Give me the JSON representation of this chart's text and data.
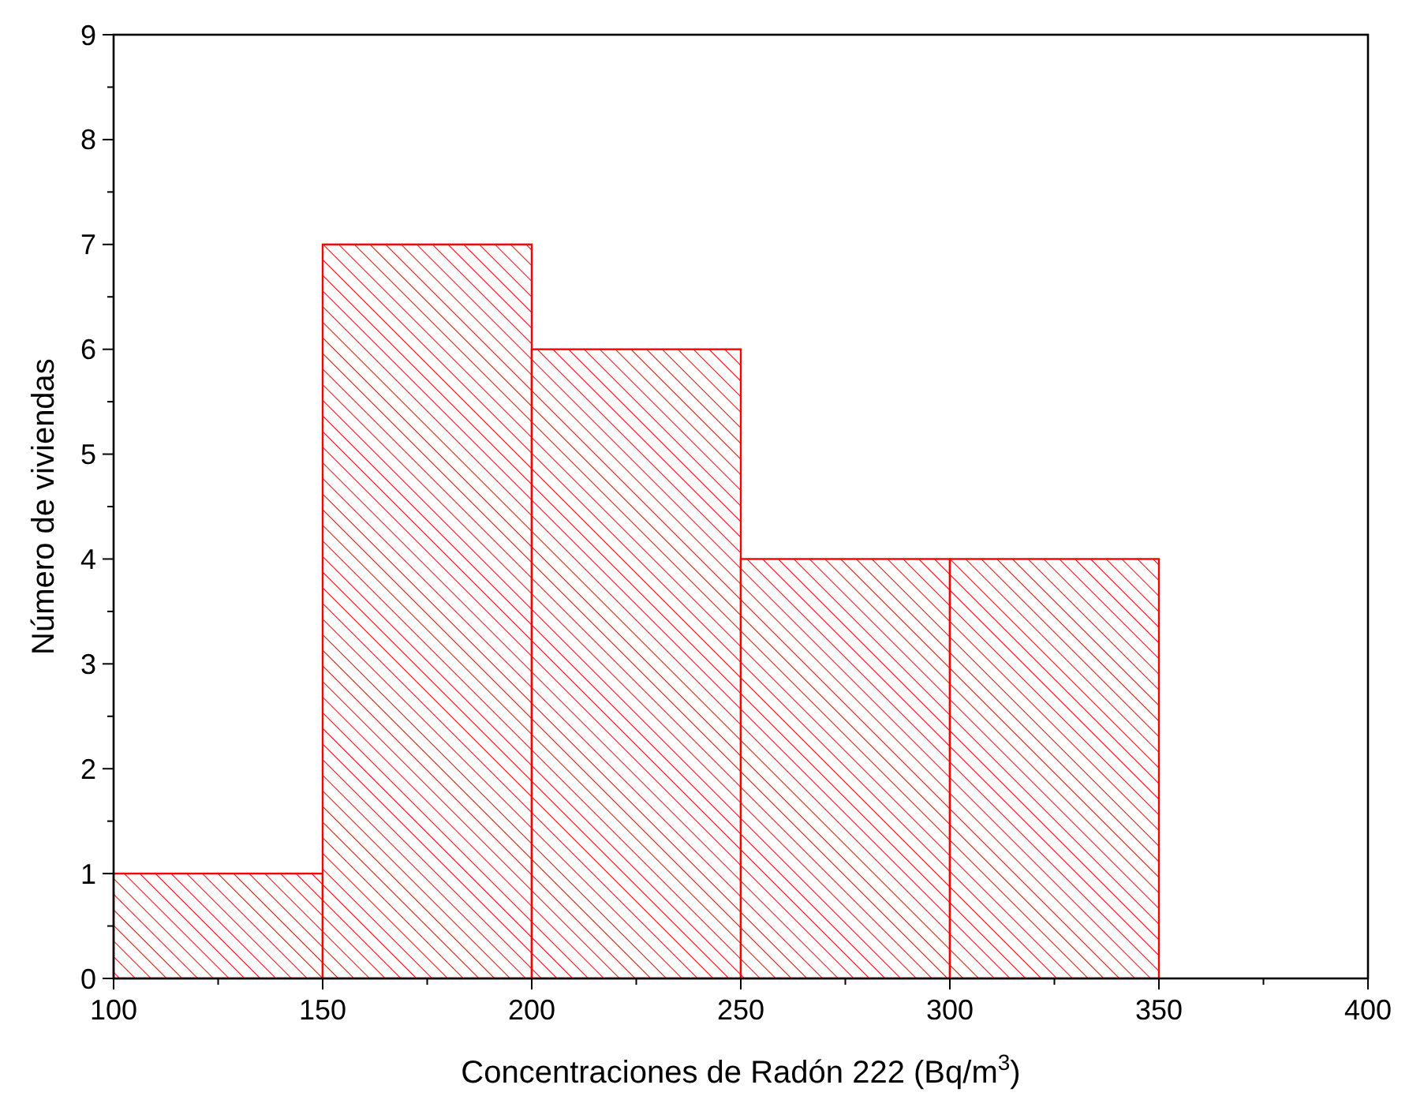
{
  "chart_data": {
    "type": "histogram",
    "xlabel": "Concentraciones de Radón 222 (Bq/m$^{3}$)",
    "ylabel": "Número de viviendas",
    "bins": [
      100,
      150,
      200,
      250,
      300,
      350
    ],
    "values": [
      1,
      7,
      6,
      4,
      4
    ],
    "color": "#ff0000",
    "xlim": [
      100,
      400
    ],
    "xticks": [
      100,
      {
        "value": 125,
        "label": null
      },
      150,
      {
        "value": 175,
        "label": null
      },
      200,
      {
        "value": 225,
        "label": null
      },
      250,
      {
        "value": 275,
        "label": null
      },
      300,
      {
        "value": 325,
        "label": null
      },
      350,
      {
        "value": 375,
        "label": null
      },
      400
    ],
    "ylim": [
      0,
      9
    ],
    "yticks": [
      0,
      {
        "value": 0.5,
        "label": null
      },
      1,
      {
        "value": 1.5,
        "label": null
      },
      2,
      {
        "value": 2.5,
        "label": null
      },
      3,
      {
        "value": 3.5,
        "label": null
      },
      4,
      {
        "value": 4.5,
        "label": null
      },
      5,
      {
        "value": 5.5,
        "label": null
      },
      6,
      {
        "value": 6.5,
        "label": null
      },
      7,
      {
        "value": 7.5,
        "label": null
      },
      8,
      {
        "value": 8.5,
        "label": null
      },
      9
    ],
    "grid": false
  }
}
